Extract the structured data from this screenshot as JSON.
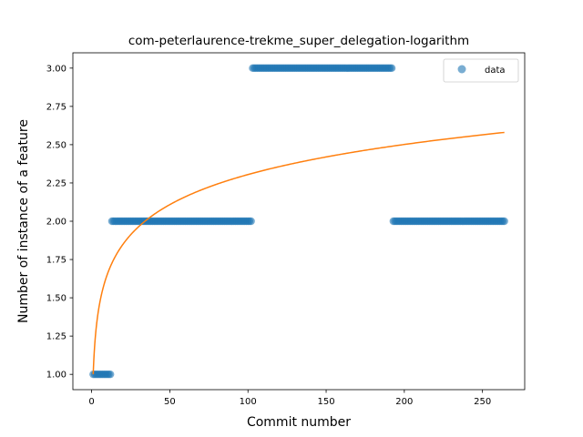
{
  "chart_data": {
    "type": "scatter",
    "title": "com-peterlaurence-trekme_super_delegation-logarithm",
    "xlabel": "Commit number",
    "ylabel": "Number of instance of a feature",
    "xlim": [
      -12,
      277
    ],
    "ylim": [
      0.9,
      3.1
    ],
    "x_ticks": [
      0,
      50,
      100,
      150,
      200,
      250
    ],
    "y_ticks": [
      1.0,
      1.25,
      1.5,
      1.75,
      2.0,
      2.25,
      2.5,
      2.75,
      3.0
    ],
    "x_tick_labels": [
      "0",
      "50",
      "100",
      "150",
      "200",
      "250"
    ],
    "y_tick_labels": [
      "1.00",
      "1.25",
      "1.50",
      "1.75",
      "2.00",
      "2.25",
      "2.50",
      "2.75",
      "3.00"
    ],
    "grid": false,
    "legend": {
      "placement": "top-right",
      "entries": [
        "data"
      ]
    },
    "series": [
      {
        "name": "data",
        "kind": "scatter",
        "color": "#1f77b4",
        "alpha": 0.6,
        "segments": [
          {
            "x_start": 1,
            "x_end": 12,
            "y": 1
          },
          {
            "x_start": 13,
            "x_end": 102,
            "y": 2
          },
          {
            "x_start": 103,
            "x_end": 192,
            "y": 3
          },
          {
            "x_start": 193,
            "x_end": 264,
            "y": 2
          }
        ]
      },
      {
        "kind": "line",
        "color": "#ff7f0e",
        "fit": "logarithmic",
        "x_range": [
          1,
          264
        ],
        "y_at_x_start": 1.0,
        "y_at_x_end": 2.58
      }
    ]
  }
}
